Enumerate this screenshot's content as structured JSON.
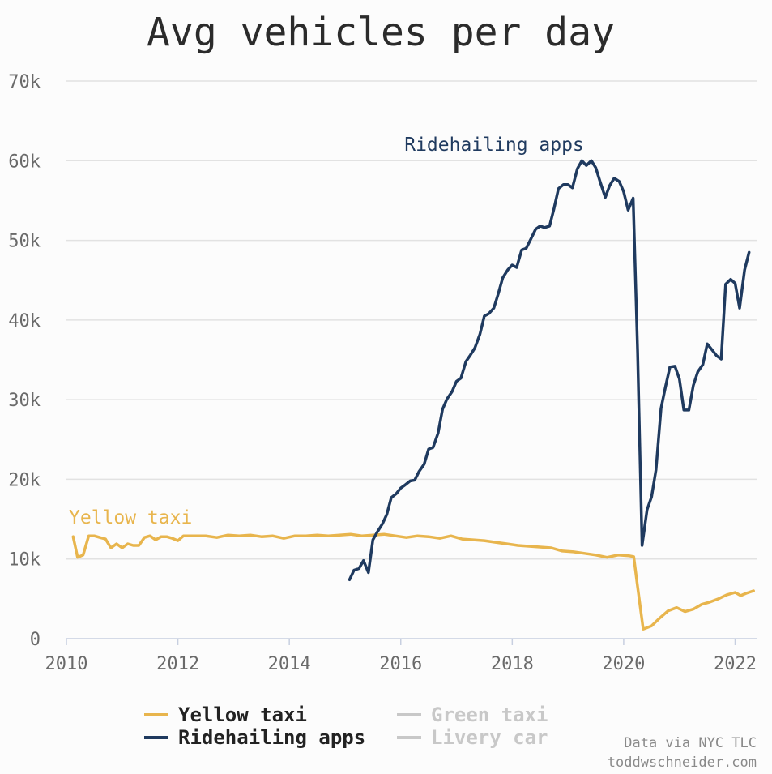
{
  "chart_data": {
    "type": "line",
    "title": "Avg vehicles per day",
    "xlabel": "",
    "ylabel": "",
    "xlim": [
      2010,
      2022.4
    ],
    "ylim": [
      0,
      70000
    ],
    "x_ticks": [
      2010,
      2012,
      2014,
      2016,
      2018,
      2020,
      2022
    ],
    "x_tick_labels": [
      "2010",
      "2012",
      "2014",
      "2016",
      "2018",
      "2020",
      "2022"
    ],
    "y_ticks": [
      0,
      10000,
      20000,
      30000,
      40000,
      50000,
      60000,
      70000
    ],
    "y_tick_labels": [
      "0",
      "10k",
      "20k",
      "30k",
      "40k",
      "50k",
      "60k",
      "70k"
    ],
    "grid": "horizontal",
    "legend_position": "bottom",
    "series": [
      {
        "name": "Yellow taxi",
        "color": "#e8b54d",
        "active": true,
        "label": "Yellow taxi",
        "points": [
          [
            2010.12,
            12800
          ],
          [
            2010.2,
            10200
          ],
          [
            2010.3,
            10500
          ],
          [
            2010.4,
            12900
          ],
          [
            2010.5,
            12900
          ],
          [
            2010.6,
            12700
          ],
          [
            2010.7,
            12500
          ],
          [
            2010.8,
            11400
          ],
          [
            2010.9,
            11900
          ],
          [
            2011.0,
            11400
          ],
          [
            2011.1,
            11900
          ],
          [
            2011.2,
            11700
          ],
          [
            2011.3,
            11700
          ],
          [
            2011.4,
            12700
          ],
          [
            2011.5,
            12900
          ],
          [
            2011.6,
            12400
          ],
          [
            2011.7,
            12800
          ],
          [
            2011.8,
            12800
          ],
          [
            2011.9,
            12600
          ],
          [
            2012.0,
            12300
          ],
          [
            2012.1,
            12900
          ],
          [
            2012.3,
            12900
          ],
          [
            2012.5,
            12900
          ],
          [
            2012.7,
            12700
          ],
          [
            2012.9,
            13000
          ],
          [
            2013.1,
            12900
          ],
          [
            2013.3,
            13000
          ],
          [
            2013.5,
            12800
          ],
          [
            2013.7,
            12900
          ],
          [
            2013.9,
            12600
          ],
          [
            2014.1,
            12900
          ],
          [
            2014.3,
            12900
          ],
          [
            2014.5,
            13000
          ],
          [
            2014.7,
            12900
          ],
          [
            2014.9,
            13000
          ],
          [
            2015.1,
            13100
          ],
          [
            2015.3,
            12900
          ],
          [
            2015.5,
            13000
          ],
          [
            2015.7,
            13100
          ],
          [
            2015.9,
            12900
          ],
          [
            2016.1,
            12700
          ],
          [
            2016.3,
            12900
          ],
          [
            2016.5,
            12800
          ],
          [
            2016.7,
            12600
          ],
          [
            2016.9,
            12900
          ],
          [
            2017.1,
            12500
          ],
          [
            2017.3,
            12400
          ],
          [
            2017.5,
            12300
          ],
          [
            2017.7,
            12100
          ],
          [
            2017.9,
            11900
          ],
          [
            2018.1,
            11700
          ],
          [
            2018.3,
            11600
          ],
          [
            2018.5,
            11500
          ],
          [
            2018.7,
            11400
          ],
          [
            2018.9,
            11000
          ],
          [
            2019.1,
            10900
          ],
          [
            2019.3,
            10700
          ],
          [
            2019.5,
            10500
          ],
          [
            2019.7,
            10200
          ],
          [
            2019.9,
            10500
          ],
          [
            2020.1,
            10400
          ],
          [
            2020.18,
            10300
          ],
          [
            2020.25,
            6500
          ],
          [
            2020.35,
            1200
          ],
          [
            2020.5,
            1600
          ],
          [
            2020.65,
            2600
          ],
          [
            2020.8,
            3500
          ],
          [
            2020.95,
            3900
          ],
          [
            2021.1,
            3400
          ],
          [
            2021.25,
            3700
          ],
          [
            2021.4,
            4300
          ],
          [
            2021.55,
            4600
          ],
          [
            2021.7,
            5000
          ],
          [
            2021.85,
            5500
          ],
          [
            2022.0,
            5800
          ],
          [
            2022.1,
            5400
          ],
          [
            2022.2,
            5700
          ],
          [
            2022.33,
            6000
          ]
        ]
      },
      {
        "name": "Ridehailing apps",
        "color": "#1f3a5f",
        "active": true,
        "label": "Ridehailing apps",
        "points": [
          [
            2015.08,
            7400
          ],
          [
            2015.16,
            8600
          ],
          [
            2015.25,
            8800
          ],
          [
            2015.33,
            9800
          ],
          [
            2015.42,
            8300
          ],
          [
            2015.5,
            12400
          ],
          [
            2015.58,
            13400
          ],
          [
            2015.67,
            14400
          ],
          [
            2015.75,
            15600
          ],
          [
            2015.83,
            17700
          ],
          [
            2015.92,
            18200
          ],
          [
            2016.0,
            18900
          ],
          [
            2016.08,
            19300
          ],
          [
            2016.17,
            19800
          ],
          [
            2016.25,
            19900
          ],
          [
            2016.33,
            21000
          ],
          [
            2016.42,
            21900
          ],
          [
            2016.5,
            23800
          ],
          [
            2016.58,
            24000
          ],
          [
            2016.67,
            25800
          ],
          [
            2016.75,
            28800
          ],
          [
            2016.83,
            30100
          ],
          [
            2016.92,
            31000
          ],
          [
            2017.0,
            32300
          ],
          [
            2017.08,
            32700
          ],
          [
            2017.17,
            34800
          ],
          [
            2017.25,
            35600
          ],
          [
            2017.33,
            36500
          ],
          [
            2017.42,
            38200
          ],
          [
            2017.5,
            40500
          ],
          [
            2017.58,
            40800
          ],
          [
            2017.67,
            41500
          ],
          [
            2017.75,
            43300
          ],
          [
            2017.83,
            45300
          ],
          [
            2017.92,
            46300
          ],
          [
            2018.0,
            46900
          ],
          [
            2018.08,
            46600
          ],
          [
            2018.17,
            48800
          ],
          [
            2018.25,
            49000
          ],
          [
            2018.33,
            50100
          ],
          [
            2018.42,
            51400
          ],
          [
            2018.5,
            51800
          ],
          [
            2018.58,
            51600
          ],
          [
            2018.67,
            51800
          ],
          [
            2018.75,
            54000
          ],
          [
            2018.83,
            56500
          ],
          [
            2018.92,
            57000
          ],
          [
            2019.0,
            57000
          ],
          [
            2019.08,
            56600
          ],
          [
            2019.17,
            59000
          ],
          [
            2019.25,
            60000
          ],
          [
            2019.33,
            59400
          ],
          [
            2019.42,
            60000
          ],
          [
            2019.5,
            59100
          ],
          [
            2019.58,
            57300
          ],
          [
            2019.67,
            55400
          ],
          [
            2019.75,
            56900
          ],
          [
            2019.83,
            57800
          ],
          [
            2019.92,
            57400
          ],
          [
            2020.0,
            56100
          ],
          [
            2020.08,
            53800
          ],
          [
            2020.17,
            55300
          ],
          [
            2020.25,
            36000
          ],
          [
            2020.33,
            11700
          ],
          [
            2020.42,
            16200
          ],
          [
            2020.5,
            17800
          ],
          [
            2020.58,
            21200
          ],
          [
            2020.67,
            28900
          ],
          [
            2020.75,
            31600
          ],
          [
            2020.83,
            34100
          ],
          [
            2020.92,
            34200
          ],
          [
            2021.0,
            32600
          ],
          [
            2021.08,
            28700
          ],
          [
            2021.17,
            28700
          ],
          [
            2021.25,
            31800
          ],
          [
            2021.33,
            33500
          ],
          [
            2021.42,
            34400
          ],
          [
            2021.5,
            37000
          ],
          [
            2021.58,
            36300
          ],
          [
            2021.67,
            35500
          ],
          [
            2021.75,
            35100
          ],
          [
            2021.83,
            44500
          ],
          [
            2021.92,
            45100
          ],
          [
            2022.0,
            44600
          ],
          [
            2022.08,
            41500
          ],
          [
            2022.17,
            46300
          ],
          [
            2022.25,
            48500
          ]
        ]
      },
      {
        "name": "Green taxi",
        "color": "#c8c8c8",
        "active": false,
        "points": []
      },
      {
        "name": "Livery car",
        "color": "#c8c8c8",
        "active": false,
        "points": []
      }
    ],
    "credits": [
      "Data via NYC TLC",
      "toddwschneider.com"
    ]
  }
}
